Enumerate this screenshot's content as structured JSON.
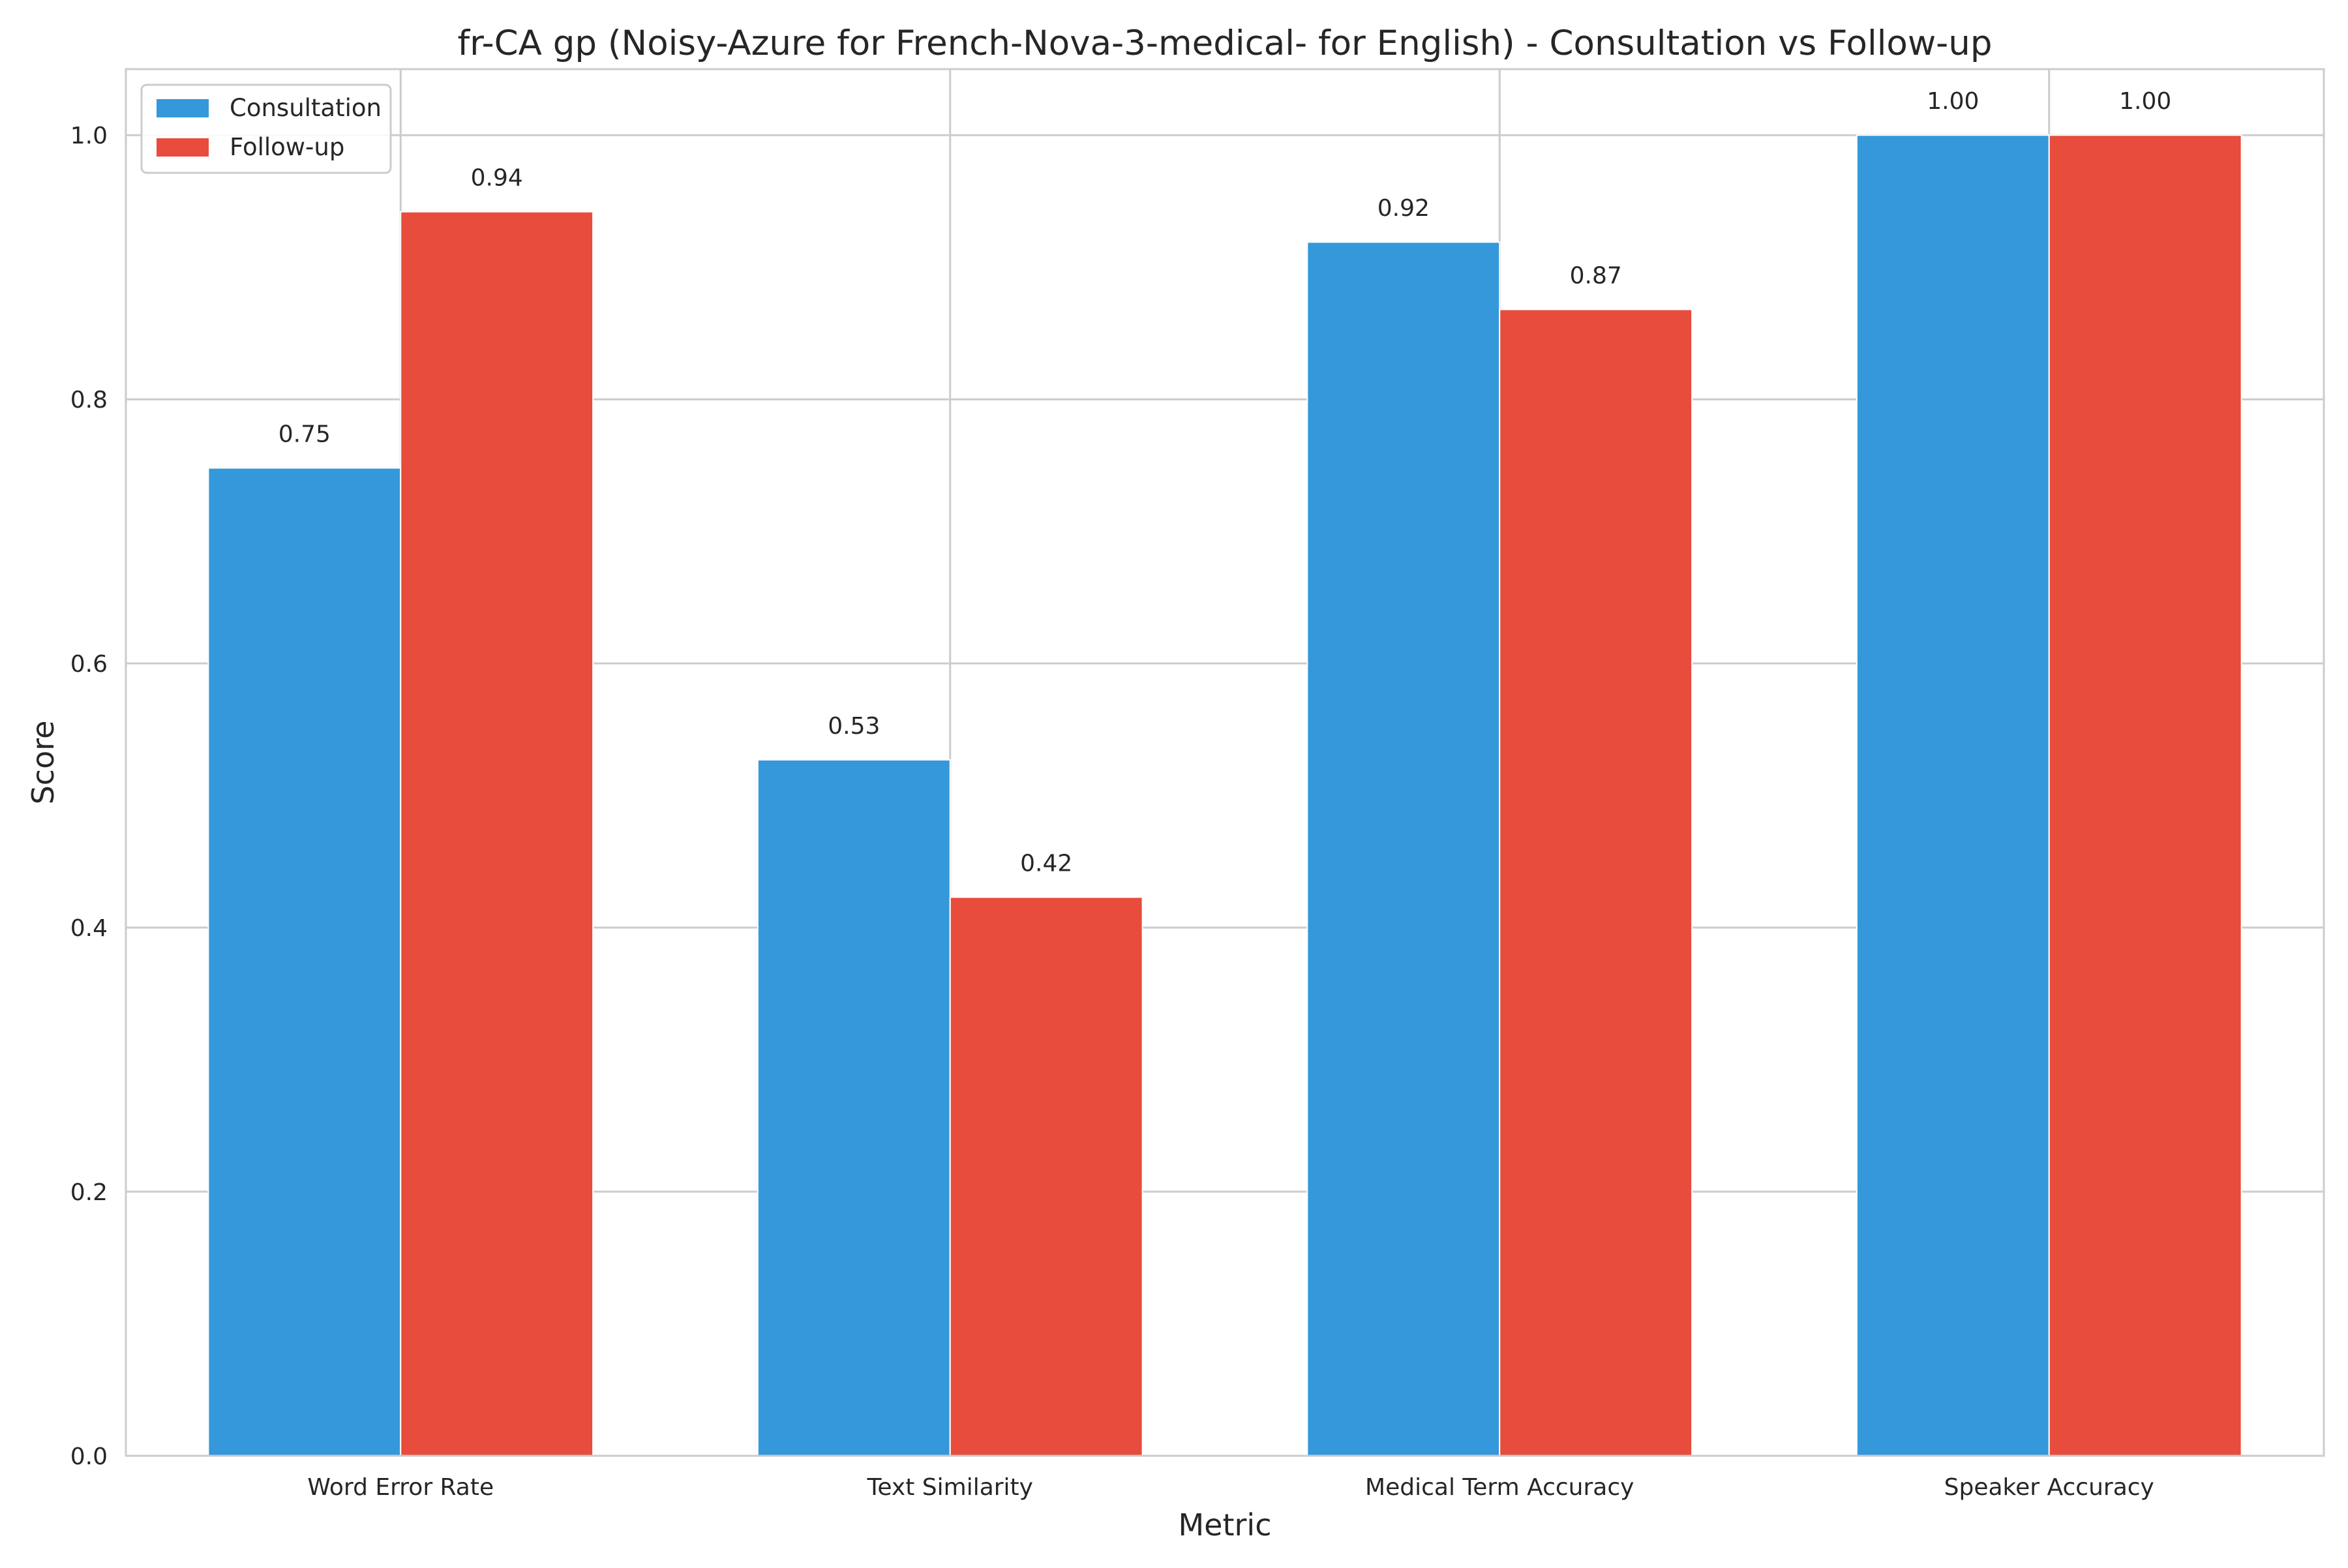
{
  "chart_data": {
    "type": "bar",
    "title": "fr-CA gp (Noisy-Azure for French-Nova-3-medical- for English) - Consultation vs Follow-up",
    "xlabel": "Metric",
    "ylabel": "Score",
    "categories": [
      "Word Error Rate",
      "Text Similarity",
      "Medical Term Accuracy",
      "Speaker Accuracy"
    ],
    "series": [
      {
        "name": "Consultation",
        "color": "#3498db",
        "values": [
          0.748,
          0.527,
          0.919,
          1.0
        ],
        "labels": [
          "0.75",
          "0.53",
          "0.92",
          "1.00"
        ]
      },
      {
        "name": "Follow-up",
        "color": "#e74c3c",
        "values": [
          0.942,
          0.423,
          0.868,
          1.0
        ],
        "labels": [
          "0.94",
          "0.42",
          "0.87",
          "1.00"
        ]
      }
    ],
    "ylim": [
      0,
      1.05
    ],
    "yticks": [
      0.0,
      0.2,
      0.4,
      0.6,
      0.8,
      1.0
    ],
    "ytick_labels": [
      "0.0",
      "0.2",
      "0.4",
      "0.6",
      "0.8",
      "1.0"
    ],
    "grid": true,
    "legend_position": "top-left"
  }
}
